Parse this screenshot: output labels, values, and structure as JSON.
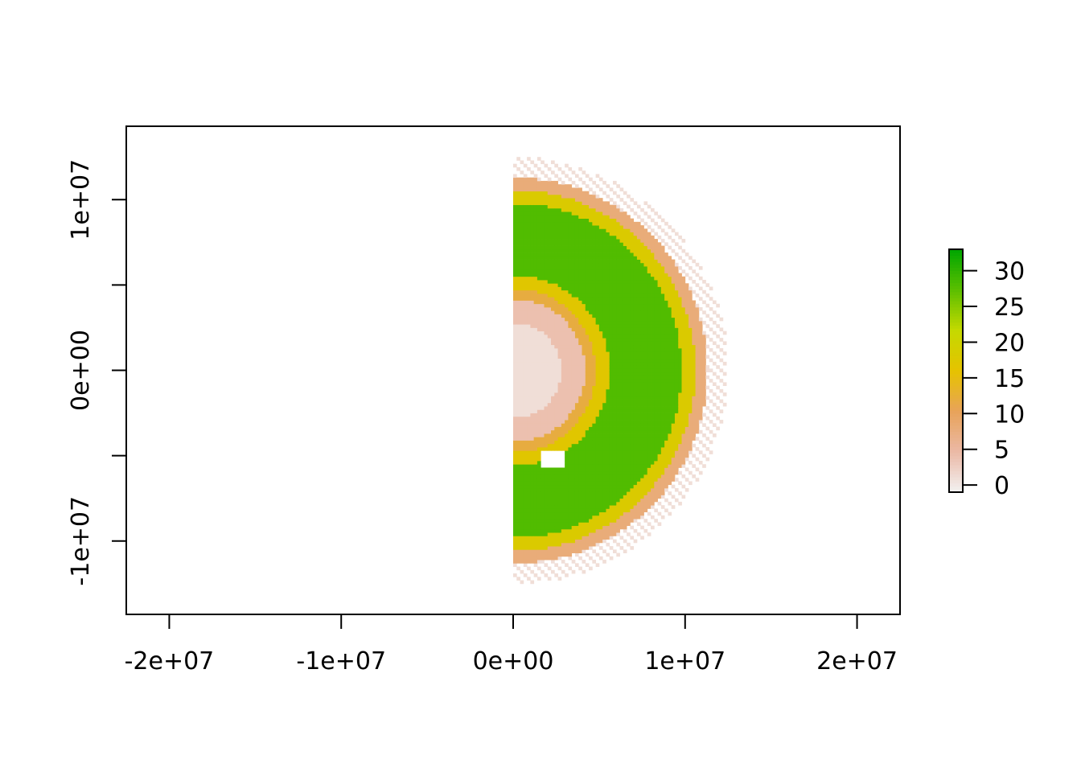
{
  "chart_data": {
    "type": "heatmap",
    "title": "",
    "xlabel": "",
    "ylabel": "",
    "xlim": [
      -22500000,
      22500000
    ],
    "ylim": [
      -14300000,
      14300000
    ],
    "x_ticks": [
      {
        "value": -20000000,
        "label": "-2e+07"
      },
      {
        "value": -10000000,
        "label": "-1e+07"
      },
      {
        "value": 0,
        "label": "0e+00"
      },
      {
        "value": 10000000,
        "label": "1e+07"
      },
      {
        "value": 20000000,
        "label": "2e+07"
      }
    ],
    "y_ticks": [
      {
        "value": -10000000,
        "label": "-1e+07"
      },
      {
        "value": -5000000,
        "label": ""
      },
      {
        "value": 0,
        "label": "0e+00"
      },
      {
        "value": 5000000,
        "label": ""
      },
      {
        "value": 10000000,
        "label": "1e+07"
      }
    ],
    "legend": {
      "placement": "right",
      "range": [
        -1,
        33
      ],
      "ticks": [
        {
          "value": 0,
          "label": "0"
        },
        {
          "value": 5,
          "label": "5"
        },
        {
          "value": 10,
          "label": "10"
        },
        {
          "value": 15,
          "label": "15"
        },
        {
          "value": 20,
          "label": "20"
        },
        {
          "value": 25,
          "label": "25"
        },
        {
          "value": 30,
          "label": "30"
        }
      ],
      "colors": [
        "#f2f2f2",
        "#ebb9a6",
        "#e8a35a",
        "#e6c200",
        "#c5d900",
        "#5cbf00",
        "#00a600"
      ]
    },
    "field": {
      "description_free": true,
      "x_range": [
        0,
        12500000
      ],
      "half_disc_radius": 12500000,
      "bands_by_radius": [
        {
          "r": [
            0,
            2800000
          ],
          "value": 1
        },
        {
          "r": [
            2800000,
            4200000
          ],
          "value": 4
        },
        {
          "r": [
            4200000,
            4800000
          ],
          "value": 12
        },
        {
          "r": [
            4800000,
            5600000
          ],
          "value": 17
        },
        {
          "r": [
            5600000,
            9800000
          ],
          "value": 28
        },
        {
          "r": [
            9800000,
            10600000
          ],
          "value": 18
        },
        {
          "r": [
            10600000,
            11300000
          ],
          "value": 8
        },
        {
          "r": [
            11300000,
            12500000
          ],
          "value": 1
        }
      ]
    }
  }
}
